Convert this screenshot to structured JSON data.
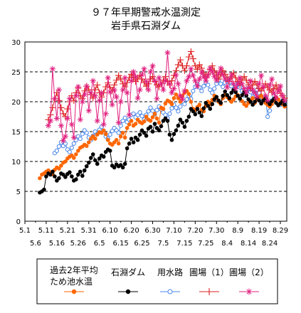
{
  "chart_data": {
    "type": "line",
    "title": "９７年早期警戒水温測定",
    "subtitle": "岩手県石淵ダム",
    "xlabel": "",
    "ylabel": "",
    "ylim": [
      0,
      30
    ],
    "yticks": [
      "0",
      "5",
      "10",
      "15",
      "20",
      "25",
      "30"
    ],
    "xticks_upper": [
      "5.1",
      "5.11",
      "5.21",
      "5.31",
      "6.10",
      "6.20",
      "6.30",
      "7.10",
      "7.20",
      "7.30",
      "8.9",
      "8.19",
      "8.29"
    ],
    "xticks_lower": [
      "5.6",
      "5.16",
      "5.26",
      "6.5",
      "6.15",
      "6.25",
      "7.5",
      "7.15",
      "7.25",
      "8.4",
      "8.14",
      "8.24"
    ],
    "grid": "horizontal-dashed",
    "legend_position": "bottom",
    "series": [
      {
        "name": "過去2年平均ため池水温",
        "name_line1": "過去2年平均",
        "name_line2": "ため池水温",
        "color": "#ff6600",
        "marker": "dot",
        "x": [
          7,
          8,
          9,
          10,
          11,
          12,
          13,
          14,
          15,
          16,
          17,
          18,
          19,
          20,
          21,
          22,
          23,
          24,
          25,
          26,
          27,
          28,
          29,
          30,
          31,
          32,
          33,
          34,
          35,
          36,
          37,
          38,
          39,
          40,
          41,
          42,
          43,
          44,
          45,
          46,
          47,
          48,
          49,
          50,
          51,
          52,
          53,
          54,
          55,
          56,
          57,
          58,
          59,
          60,
          61,
          62,
          63,
          64,
          65,
          66,
          67,
          68,
          69,
          70,
          71,
          72,
          73,
          74,
          75,
          76,
          77,
          78,
          79,
          80,
          81,
          82,
          83,
          84,
          85,
          86,
          87,
          88,
          89,
          90,
          91,
          92,
          93,
          94,
          95,
          96,
          97,
          98,
          99,
          100,
          101,
          102,
          103,
          104,
          105,
          106,
          107,
          108,
          109,
          110,
          111,
          112,
          113,
          114,
          115,
          116,
          117,
          118,
          119,
          120,
          121,
          122
        ],
        "values": [
          7.2,
          7.8,
          8.0,
          8.3,
          8.5,
          8.2,
          7.9,
          8.6,
          9.0,
          8.8,
          9.3,
          9.8,
          10.0,
          10.5,
          10.8,
          11.0,
          10.6,
          11.2,
          11.8,
          12.3,
          12.5,
          12.8,
          12.6,
          13.2,
          13.8,
          14.2,
          13.8,
          14.5,
          14.9,
          14.8,
          15.2,
          14.6,
          13.6,
          13.0,
          12.8,
          13.2,
          13.6,
          13.0,
          14.2,
          14.8,
          14.0,
          15.6,
          16.2,
          16.8,
          16.0,
          16.3,
          17.0,
          16.6,
          16.4,
          16.7,
          17.5,
          17.0,
          16.8,
          17.4,
          18.0,
          17.2,
          16.5,
          19.0,
          18.8,
          19.7,
          20.2,
          20.0,
          19.6,
          20.6,
          21.2,
          20.6,
          20.0,
          21.0,
          21.5,
          21.8,
          21.3,
          20.0,
          18.8,
          18.6,
          19.1,
          19.5,
          18.6,
          18.4,
          19.3,
          20.0,
          19.6,
          20.3,
          21.0,
          20.6,
          20.0,
          19.6,
          20.6,
          21.2,
          20.8,
          20.4,
          20.0,
          20.4,
          20.9,
          21.1,
          20.6,
          20.1,
          19.6,
          19.3,
          19.8,
          20.2,
          20.6,
          19.8,
          20.3,
          20.8,
          21.0,
          20.5,
          19.8,
          19.5,
          19.2,
          19.6,
          20.2,
          20.7,
          20.4,
          19.9,
          19.6,
          19.2
        ]
      },
      {
        "name": "石淵ダム",
        "color": "#000000",
        "marker": "dot",
        "x": [
          7,
          8,
          9,
          10,
          11,
          12,
          13,
          14,
          15,
          16,
          17,
          18,
          19,
          20,
          21,
          22,
          23,
          24,
          25,
          26,
          27,
          28,
          29,
          30,
          31,
          32,
          33,
          34,
          35,
          36,
          37,
          38,
          39,
          40,
          41,
          42,
          43,
          44,
          45,
          46,
          47,
          48,
          49,
          50,
          51,
          52,
          53,
          54,
          55,
          56,
          57,
          58,
          59,
          60,
          61,
          62,
          63,
          64,
          65,
          66,
          67,
          68,
          69,
          70,
          71,
          72,
          73,
          74,
          75,
          76,
          77,
          78,
          79,
          80,
          81,
          82,
          83,
          84,
          85,
          86,
          87,
          88,
          89,
          90,
          91,
          92,
          93,
          94,
          95,
          96,
          97,
          98,
          99,
          100,
          101,
          102,
          103,
          104,
          105,
          106,
          107,
          108,
          109,
          110,
          111,
          112,
          113,
          114,
          115,
          116,
          117,
          118,
          119,
          120,
          121,
          122
        ],
        "values": [
          4.8,
          5.0,
          5.3,
          7.5,
          8.0,
          7.8,
          8.3,
          7.5,
          6.8,
          7.2,
          8.0,
          7.8,
          7.4,
          7.9,
          8.2,
          7.5,
          6.8,
          7.0,
          7.8,
          8.3,
          7.6,
          8.5,
          9.2,
          9.8,
          10.6,
          11.2,
          10.2,
          9.6,
          10.5,
          11.0,
          10.8,
          11.6,
          12.0,
          11.8,
          9.3,
          9.0,
          9.5,
          9.2,
          9.4,
          9.0,
          9.6,
          12.2,
          13.0,
          13.8,
          13.2,
          14.0,
          13.6,
          14.5,
          15.2,
          14.8,
          14.3,
          15.5,
          15.8,
          15.0,
          16.3,
          15.6,
          15.2,
          15.9,
          16.8,
          17.2,
          16.8,
          14.5,
          13.6,
          14.6,
          15.2,
          16.0,
          17.0,
          16.5,
          15.8,
          16.8,
          17.5,
          18.8,
          18.4,
          17.9,
          18.8,
          18.2,
          17.6,
          18.9,
          19.8,
          19.3,
          18.8,
          19.6,
          20.4,
          20.8,
          20.2,
          19.8,
          21.0,
          21.7,
          21.1,
          20.6,
          21.5,
          22.0,
          21.6,
          21.0,
          20.5,
          21.1,
          21.6,
          21.0,
          20.4,
          20.0,
          19.5,
          20.0,
          20.6,
          20.2,
          19.7,
          20.2,
          20.6,
          20.0,
          19.6,
          20.1,
          20.5,
          19.8,
          19.4,
          19.7,
          20.1,
          19.5
        ]
      },
      {
        "name": "用水路",
        "color": "#4a86e8",
        "marker": "circle",
        "x": [
          14,
          15,
          16,
          17,
          18,
          19,
          20,
          21,
          22,
          23,
          24,
          25,
          26,
          27,
          28,
          29,
          30,
          31,
          32,
          33,
          34,
          35,
          36,
          37,
          38,
          39,
          40,
          41,
          42,
          43,
          44,
          45,
          46,
          47,
          48,
          49,
          50,
          51,
          52,
          53,
          54,
          55,
          56,
          57,
          58,
          59,
          60,
          61,
          62,
          63,
          64,
          65,
          66,
          67,
          68,
          69,
          70,
          71,
          72,
          73,
          74,
          75,
          76,
          77,
          78,
          79,
          80,
          81,
          82,
          83,
          84,
          85,
          86,
          87,
          88,
          89,
          90,
          91,
          92,
          93,
          94,
          95,
          96,
          97,
          98,
          99,
          100,
          101,
          102,
          103,
          104,
          105,
          106,
          107,
          108,
          109,
          110,
          111,
          112,
          113,
          114,
          115,
          116,
          117,
          118,
          119,
          120,
          121,
          122
        ],
        "values": [
          11.4,
          11.8,
          12.5,
          13.2,
          12.6,
          13.0,
          12.0,
          11.6,
          12.3,
          13.0,
          13.6,
          14.2,
          13.8,
          14.6,
          15.2,
          14.8,
          14.0,
          13.6,
          14.3,
          15.0,
          14.6,
          15.3,
          15.8,
          14.9,
          14.2,
          13.8,
          14.5,
          15.1,
          15.6,
          15.2,
          14.8,
          16.0,
          16.8,
          17.3,
          16.6,
          17.0,
          17.8,
          18.0,
          17.4,
          17.8,
          18.2,
          17.6,
          17.0,
          17.8,
          18.4,
          19.0,
          18.5,
          17.9,
          18.6,
          19.2,
          18.7,
          18.2,
          17.8,
          17.2,
          18.0,
          18.9,
          19.5,
          19.0,
          18.4,
          19.2,
          20.0,
          19.6,
          20.4,
          21.0,
          20.5,
          21.8,
          22.5,
          23.0,
          22.4,
          21.8,
          22.6,
          23.2,
          22.8,
          22.0,
          21.5,
          22.2,
          23.0,
          23.6,
          23.0,
          22.5,
          23.2,
          23.8,
          23.2,
          22.6,
          21.8,
          22.5,
          23.0,
          22.4,
          21.8,
          21.0,
          21.6,
          22.2,
          21.6,
          20.8,
          21.4,
          22.0,
          21.5,
          20.8,
          20.2,
          20.7,
          17.5,
          18.5,
          20.2,
          21.0,
          20.5,
          20.0,
          19.5,
          20.2,
          19.6
        ]
      },
      {
        "name": "圃場(1)",
        "name_label": "圃場（1）",
        "color": "#dd2222",
        "marker": "plus",
        "x": [
          11,
          12,
          13,
          14,
          15,
          16,
          17,
          18,
          19,
          20,
          21,
          22,
          23,
          24,
          25,
          26,
          27,
          28,
          29,
          30,
          31,
          32,
          33,
          34,
          35,
          36,
          37,
          38,
          39,
          40,
          41,
          42,
          43,
          44,
          45,
          46,
          47,
          48,
          49,
          50,
          51,
          52,
          53,
          54,
          55,
          56,
          57,
          58,
          59,
          60,
          61,
          62,
          63,
          64,
          65,
          66,
          67,
          68,
          69,
          70,
          71,
          72,
          73,
          74,
          75,
          76,
          77,
          78,
          79,
          80,
          81,
          82,
          83,
          84,
          85,
          86,
          87,
          88,
          89,
          90,
          91,
          92,
          93,
          94,
          95,
          96,
          97,
          98,
          99,
          100,
          101,
          102,
          103,
          104,
          105,
          106,
          107,
          108,
          109,
          110,
          111,
          112,
          113,
          114,
          115,
          116,
          117,
          118,
          119,
          120,
          121,
          122
        ],
        "values": [
          17.0,
          17.8,
          19.0,
          20.5,
          21.5,
          20.2,
          19.0,
          18.0,
          17.5,
          18.8,
          20.0,
          21.0,
          20.2,
          21.5,
          22.3,
          21.0,
          20.5,
          21.8,
          22.6,
          22.0,
          21.2,
          20.6,
          22.0,
          22.8,
          21.5,
          20.8,
          21.5,
          22.5,
          23.2,
          22.4,
          21.8,
          22.8,
          23.6,
          24.4,
          23.8,
          23.0,
          22.5,
          23.2,
          24.0,
          24.6,
          24.0,
          23.4,
          23.8,
          24.4,
          23.8,
          23.2,
          22.6,
          23.0,
          23.8,
          24.2,
          23.4,
          22.8,
          22.5,
          23.0,
          23.6,
          24.2,
          23.4,
          22.8,
          23.5,
          24.4,
          25.2,
          26.2,
          27.0,
          26.0,
          25.2,
          26.0,
          27.5,
          28.4,
          27.2,
          26.0,
          25.4,
          26.2,
          25.6,
          24.8,
          24.0,
          24.6,
          25.4,
          26.0,
          25.2,
          24.5,
          23.8,
          24.5,
          25.2,
          24.6,
          24.0,
          23.4,
          24.2,
          24.8,
          24.0,
          23.4,
          22.8,
          23.6,
          24.2,
          23.6,
          22.8,
          22.2,
          22.8,
          23.4,
          22.8,
          22.2,
          21.8,
          22.4,
          23.0,
          22.4,
          22.0,
          21.6,
          22.2,
          22.8,
          22.0,
          21.4,
          21.0,
          20.6
        ]
      },
      {
        "name": "圃場(2)",
        "name_label": "圃場（2）",
        "color": "#e0207f",
        "marker": "star",
        "x": [
          11,
          12,
          13,
          14,
          15,
          16,
          17,
          18,
          19,
          20,
          21,
          22,
          23,
          24,
          25,
          26,
          27,
          28,
          29,
          30,
          31,
          32,
          33,
          34,
          35,
          36,
          37,
          38,
          39,
          40,
          41,
          42,
          43,
          44,
          45,
          46,
          47,
          48,
          49,
          50,
          51,
          52,
          53,
          54,
          55,
          56,
          57,
          58,
          59,
          60,
          61,
          62,
          63,
          64,
          65,
          66,
          67,
          68,
          69,
          70,
          71,
          72,
          73,
          74,
          75,
          76,
          77,
          78,
          79,
          80,
          81,
          82,
          83,
          84,
          85,
          86,
          87,
          88,
          89,
          90,
          91,
          92,
          93,
          94,
          95,
          96,
          97,
          98,
          99,
          100,
          101,
          102,
          103,
          104,
          105,
          106,
          107,
          108,
          109,
          110,
          111,
          112,
          113,
          114,
          115,
          116,
          117,
          118,
          119,
          120,
          121,
          122
        ],
        "values": [
          16.0,
          16.8,
          25.5,
          20.5,
          17.2,
          22.0,
          16.0,
          13.5,
          14.2,
          17.2,
          20.5,
          16.2,
          14.0,
          21.0,
          22.5,
          17.0,
          20.0,
          21.2,
          22.6,
          18.5,
          21.5,
          23.5,
          21.0,
          16.8,
          20.2,
          21.5,
          16.2,
          18.0,
          24.0,
          21.6,
          19.5,
          22.0,
          20.8,
          16.5,
          20.0,
          22.0,
          24.0,
          21.5,
          17.8,
          23.5,
          25.0,
          24.2,
          20.6,
          22.0,
          24.5,
          25.5,
          23.4,
          22.0,
          25.0,
          26.0,
          23.5,
          20.5,
          24.0,
          23.0,
          22.0,
          23.5,
          28.2,
          23.0,
          21.5,
          22.2,
          24.5,
          23.0,
          21.0,
          20.4,
          21.8,
          23.5,
          24.2,
          25.5,
          24.4,
          23.5,
          22.6,
          23.8,
          25.0,
          24.2,
          23.5,
          24.4,
          25.6,
          25.0,
          24.2,
          23.6,
          24.8,
          25.6,
          24.5,
          23.8,
          22.4,
          23.6,
          24.5,
          23.0,
          22.2,
          23.0,
          24.0,
          23.0,
          22.2,
          21.5,
          22.3,
          23.5,
          22.0,
          21.5,
          20.8,
          23.0,
          24.4,
          22.5,
          21.0,
          20.2,
          22.8,
          23.8,
          21.4,
          20.6,
          21.8,
          22.6,
          21.0,
          20.2
        ]
      }
    ]
  }
}
